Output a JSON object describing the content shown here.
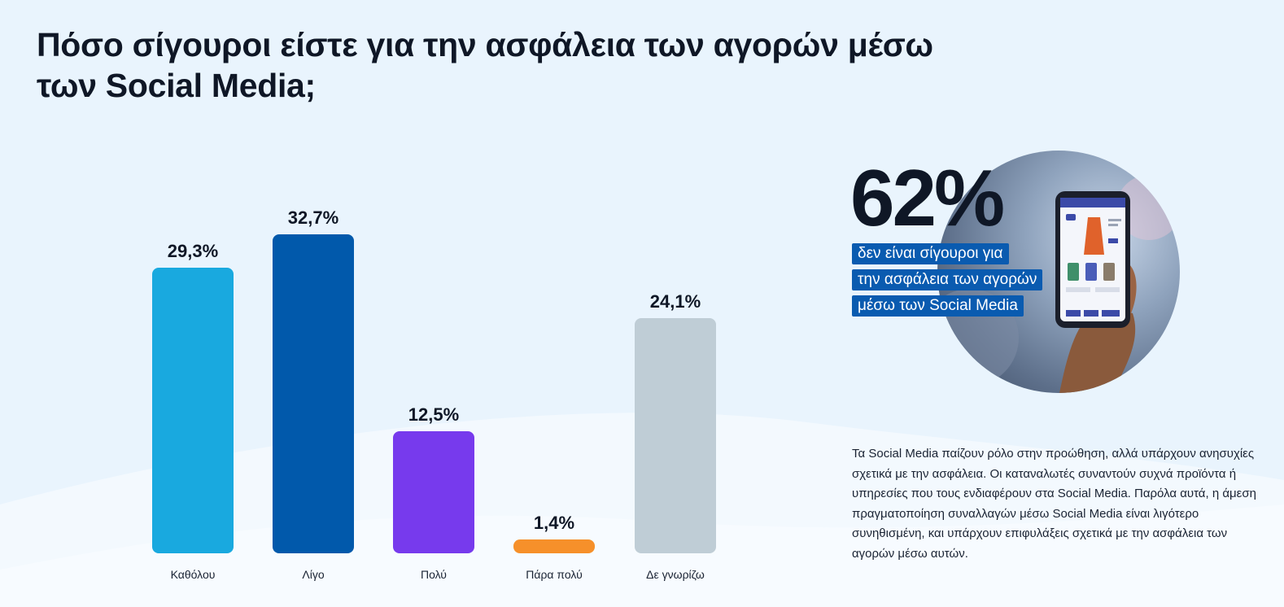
{
  "title": "Πόσο σίγουροι είστε για την ασφάλεια των αγορών μέσω των Social Media;",
  "chart_data": {
    "type": "bar",
    "categories": [
      "Καθόλου",
      "Λίγο",
      "Πολύ",
      "Πάρα πολύ",
      "Δε γνωρίζω"
    ],
    "values": [
      29.3,
      32.7,
      12.5,
      1.4,
      24.1
    ],
    "value_labels": [
      "29,3%",
      "32,7%",
      "12,5%",
      "1,4%",
      "24,1%"
    ],
    "colors": [
      "#19a9df",
      "#0159ab",
      "#773aed",
      "#f6902a",
      "#bfcdd6"
    ],
    "unit": "%",
    "ylim": [
      0,
      32.7
    ],
    "grid": false,
    "legend": "none"
  },
  "highlight": {
    "stat": "62%",
    "lines": [
      "δεν είναι σίγουροι για",
      "την ασφάλεια των αγορών",
      "μέσω των Social Media"
    ],
    "tag_color": "#0a5bb0"
  },
  "description": "Τα Social Media παίζουν ρόλο στην προώθηση, αλλά υπάρχουν ανησυχίες σχετικά με την ασφάλεια. Οι καταναλωτές συναντούν συχνά προϊόντα ή υπηρεσίες που τους ενδιαφέρουν στα Social Media. Παρόλα αυτά, η άμεση πραγματοποίηση συναλλαγών μέσω Social Media είναι λιγότερο συνηθισμένη, και υπάρχουν επιφυλάξεις σχετικά με την ασφάλεια των αγορών μέσω αυτών."
}
